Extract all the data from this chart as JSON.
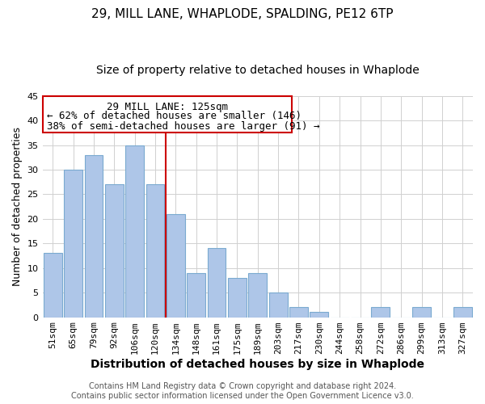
{
  "title": "29, MILL LANE, WHAPLODE, SPALDING, PE12 6TP",
  "subtitle": "Size of property relative to detached houses in Whaplode",
  "xlabel": "Distribution of detached houses by size in Whaplode",
  "ylabel": "Number of detached properties",
  "bar_labels": [
    "51sqm",
    "65sqm",
    "79sqm",
    "92sqm",
    "106sqm",
    "120sqm",
    "134sqm",
    "148sqm",
    "161sqm",
    "175sqm",
    "189sqm",
    "203sqm",
    "217sqm",
    "230sqm",
    "244sqm",
    "258sqm",
    "272sqm",
    "286sqm",
    "299sqm",
    "313sqm",
    "327sqm"
  ],
  "bar_values": [
    13,
    30,
    33,
    27,
    35,
    27,
    21,
    9,
    14,
    8,
    9,
    5,
    2,
    1,
    0,
    0,
    2,
    0,
    2,
    0,
    2
  ],
  "bar_color": "#aec6e8",
  "bar_edge_color": "#7aaad0",
  "vline_x": 5.5,
  "vline_color": "#cc0000",
  "ylim": [
    0,
    45
  ],
  "yticks": [
    0,
    5,
    10,
    15,
    20,
    25,
    30,
    35,
    40,
    45
  ],
  "annotation_title": "29 MILL LANE: 125sqm",
  "annotation_line1": "← 62% of detached houses are smaller (146)",
  "annotation_line2": "38% of semi-detached houses are larger (91) →",
  "footer1": "Contains HM Land Registry data © Crown copyright and database right 2024.",
  "footer2": "Contains public sector information licensed under the Open Government Licence v3.0.",
  "background_color": "#ffffff",
  "grid_color": "#d0d0d0",
  "title_fontsize": 11,
  "subtitle_fontsize": 10,
  "xlabel_fontsize": 10,
  "ylabel_fontsize": 9,
  "tick_fontsize": 8,
  "annotation_fontsize": 9,
  "footer_fontsize": 7
}
